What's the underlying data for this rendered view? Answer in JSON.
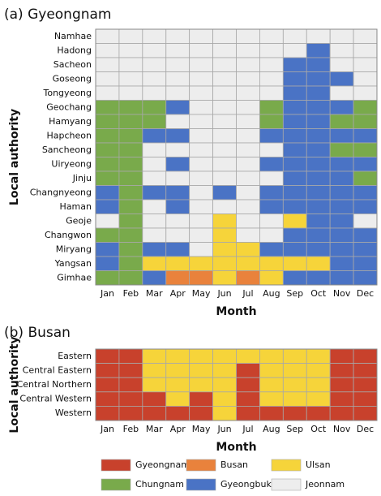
{
  "chart_data": [
    {
      "type": "heatmap",
      "title": "(a) Gyeongnam",
      "xlabel": "Month",
      "ylabel": "Local authority",
      "categories": [
        "Jan",
        "Feb",
        "Mar",
        "Apr",
        "May",
        "Jun",
        "Jul",
        "Aug",
        "Sep",
        "Oct",
        "Nov",
        "Dec"
      ],
      "rows": [
        "Namhae",
        "Hadong",
        "Sacheon",
        "Goseong",
        "Tongyeong",
        "Geochang",
        "Hamyang",
        "Hapcheon",
        "Sancheong",
        "Uiryeong",
        "Jinju",
        "Changnyeong",
        "Haman",
        "Geoje",
        "Changwon",
        "Miryang",
        "Yangsan",
        "Gimhae"
      ],
      "values": [
        [
          "Jeonnam",
          "Jeonnam",
          "Jeonnam",
          "Jeonnam",
          "Jeonnam",
          "Jeonnam",
          "Jeonnam",
          "Jeonnam",
          "Jeonnam",
          "Jeonnam",
          "Jeonnam",
          "Jeonnam"
        ],
        [
          "Jeonnam",
          "Jeonnam",
          "Jeonnam",
          "Jeonnam",
          "Jeonnam",
          "Jeonnam",
          "Jeonnam",
          "Jeonnam",
          "Jeonnam",
          "Gyeongbuk",
          "Jeonnam",
          "Jeonnam"
        ],
        [
          "Jeonnam",
          "Jeonnam",
          "Jeonnam",
          "Jeonnam",
          "Jeonnam",
          "Jeonnam",
          "Jeonnam",
          "Jeonnam",
          "Gyeongbuk",
          "Gyeongbuk",
          "Jeonnam",
          "Jeonnam"
        ],
        [
          "Jeonnam",
          "Jeonnam",
          "Jeonnam",
          "Jeonnam",
          "Jeonnam",
          "Jeonnam",
          "Jeonnam",
          "Jeonnam",
          "Gyeongbuk",
          "Gyeongbuk",
          "Gyeongbuk",
          "Jeonnam"
        ],
        [
          "Jeonnam",
          "Jeonnam",
          "Jeonnam",
          "Jeonnam",
          "Jeonnam",
          "Jeonnam",
          "Jeonnam",
          "Jeonnam",
          "Gyeongbuk",
          "Gyeongbuk",
          "Jeonnam",
          "Jeonnam"
        ],
        [
          "Chungnam",
          "Chungnam",
          "Chungnam",
          "Gyeongbuk",
          "Jeonnam",
          "Jeonnam",
          "Jeonnam",
          "Chungnam",
          "Gyeongbuk",
          "Gyeongbuk",
          "Gyeongbuk",
          "Chungnam"
        ],
        [
          "Chungnam",
          "Chungnam",
          "Chungnam",
          "Jeonnam",
          "Jeonnam",
          "Jeonnam",
          "Jeonnam",
          "Chungnam",
          "Gyeongbuk",
          "Gyeongbuk",
          "Chungnam",
          "Chungnam"
        ],
        [
          "Chungnam",
          "Chungnam",
          "Gyeongbuk",
          "Gyeongbuk",
          "Jeonnam",
          "Jeonnam",
          "Jeonnam",
          "Gyeongbuk",
          "Gyeongbuk",
          "Gyeongbuk",
          "Gyeongbuk",
          "Gyeongbuk"
        ],
        [
          "Chungnam",
          "Chungnam",
          "Jeonnam",
          "Jeonnam",
          "Jeonnam",
          "Jeonnam",
          "Jeonnam",
          "Jeonnam",
          "Gyeongbuk",
          "Gyeongbuk",
          "Chungnam",
          "Chungnam"
        ],
        [
          "Chungnam",
          "Chungnam",
          "Jeonnam",
          "Gyeongbuk",
          "Jeonnam",
          "Jeonnam",
          "Jeonnam",
          "Gyeongbuk",
          "Gyeongbuk",
          "Gyeongbuk",
          "Gyeongbuk",
          "Gyeongbuk"
        ],
        [
          "Chungnam",
          "Chungnam",
          "Jeonnam",
          "Jeonnam",
          "Jeonnam",
          "Jeonnam",
          "Jeonnam",
          "Jeonnam",
          "Gyeongbuk",
          "Gyeongbuk",
          "Gyeongbuk",
          "Chungnam"
        ],
        [
          "Gyeongbuk",
          "Chungnam",
          "Gyeongbuk",
          "Gyeongbuk",
          "Jeonnam",
          "Gyeongbuk",
          "Jeonnam",
          "Gyeongbuk",
          "Gyeongbuk",
          "Gyeongbuk",
          "Gyeongbuk",
          "Gyeongbuk"
        ],
        [
          "Gyeongbuk",
          "Chungnam",
          "Jeonnam",
          "Gyeongbuk",
          "Jeonnam",
          "Jeonnam",
          "Jeonnam",
          "Gyeongbuk",
          "Gyeongbuk",
          "Gyeongbuk",
          "Gyeongbuk",
          "Gyeongbuk"
        ],
        [
          "Jeonnam",
          "Chungnam",
          "Jeonnam",
          "Jeonnam",
          "Jeonnam",
          "Ulsan",
          "Jeonnam",
          "Jeonnam",
          "Ulsan",
          "Gyeongbuk",
          "Gyeongbuk",
          "Jeonnam"
        ],
        [
          "Chungnam",
          "Chungnam",
          "Jeonnam",
          "Jeonnam",
          "Jeonnam",
          "Ulsan",
          "Jeonnam",
          "Jeonnam",
          "Gyeongbuk",
          "Gyeongbuk",
          "Gyeongbuk",
          "Gyeongbuk"
        ],
        [
          "Gyeongbuk",
          "Chungnam",
          "Gyeongbuk",
          "Gyeongbuk",
          "Jeonnam",
          "Ulsan",
          "Ulsan",
          "Gyeongbuk",
          "Gyeongbuk",
          "Gyeongbuk",
          "Gyeongbuk",
          "Gyeongbuk"
        ],
        [
          "Gyeongbuk",
          "Chungnam",
          "Ulsan",
          "Ulsan",
          "Ulsan",
          "Ulsan",
          "Ulsan",
          "Ulsan",
          "Ulsan",
          "Ulsan",
          "Gyeongbuk",
          "Gyeongbuk"
        ],
        [
          "Chungnam",
          "Chungnam",
          "Gyeongbuk",
          "Busan",
          "Busan",
          "Ulsan",
          "Busan",
          "Ulsan",
          "Gyeongbuk",
          "Gyeongbuk",
          "Gyeongbuk",
          "Gyeongbuk"
        ]
      ]
    },
    {
      "type": "heatmap",
      "title": "(b) Busan",
      "xlabel": "Month",
      "ylabel": "Local authority",
      "categories": [
        "Jan",
        "Feb",
        "Mar",
        "Apr",
        "May",
        "Jun",
        "Jul",
        "Aug",
        "Sep",
        "Oct",
        "Nov",
        "Dec"
      ],
      "rows": [
        "Eastern",
        "Central Eastern",
        "Central Northern",
        "Central Western",
        "Western"
      ],
      "values": [
        [
          "Gyeongnam",
          "Gyeongnam",
          "Ulsan",
          "Ulsan",
          "Ulsan",
          "Ulsan",
          "Ulsan",
          "Ulsan",
          "Ulsan",
          "Ulsan",
          "Gyeongnam",
          "Gyeongnam"
        ],
        [
          "Gyeongnam",
          "Gyeongnam",
          "Ulsan",
          "Ulsan",
          "Ulsan",
          "Ulsan",
          "Gyeongnam",
          "Ulsan",
          "Ulsan",
          "Ulsan",
          "Gyeongnam",
          "Gyeongnam"
        ],
        [
          "Gyeongnam",
          "Gyeongnam",
          "Ulsan",
          "Ulsan",
          "Ulsan",
          "Ulsan",
          "Gyeongnam",
          "Ulsan",
          "Ulsan",
          "Ulsan",
          "Gyeongnam",
          "Gyeongnam"
        ],
        [
          "Gyeongnam",
          "Gyeongnam",
          "Gyeongnam",
          "Ulsan",
          "Gyeongnam",
          "Ulsan",
          "Gyeongnam",
          "Ulsan",
          "Ulsan",
          "Ulsan",
          "Gyeongnam",
          "Gyeongnam"
        ],
        [
          "Gyeongnam",
          "Gyeongnam",
          "Gyeongnam",
          "Gyeongnam",
          "Gyeongnam",
          "Ulsan",
          "Gyeongnam",
          "Gyeongnam",
          "Gyeongnam",
          "Gyeongnam",
          "Gyeongnam",
          "Gyeongnam"
        ]
      ]
    }
  ],
  "legend": [
    {
      "name": "Gyeongnam",
      "color": "#c8412c"
    },
    {
      "name": "Busan",
      "color": "#e9823c"
    },
    {
      "name": "Ulsan",
      "color": "#f6d43a"
    },
    {
      "name": "Chungnam",
      "color": "#79aa4b"
    },
    {
      "name": "Gyeongbuk",
      "color": "#4a73c5"
    },
    {
      "name": "Jeonnam",
      "color": "#ededed"
    }
  ]
}
